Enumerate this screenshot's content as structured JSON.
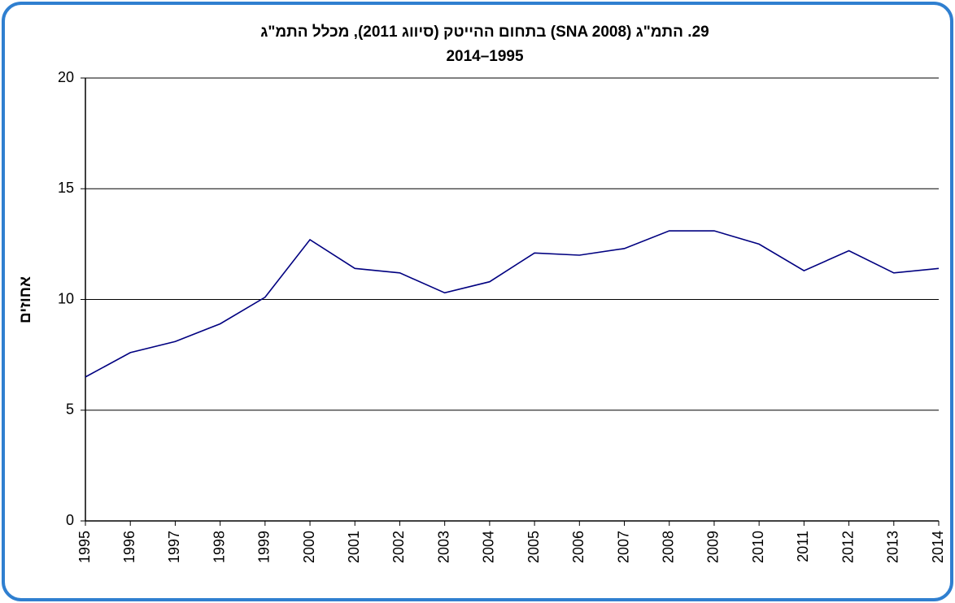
{
  "chart_data": {
    "type": "line",
    "title": "29. התמ\"ג (SNA 2008) בתחום ההייטק (סיווג 2011), מכלל התמ\"ג",
    "subtitle": "2014–1995",
    "y_label": "אחוזים",
    "categories": [
      "1995",
      "1996",
      "1997",
      "1998",
      "1999",
      "2000",
      "2001",
      "2002",
      "2003",
      "2004",
      "2005",
      "2006",
      "2007",
      "2008",
      "2009",
      "2010",
      "2011",
      "2012",
      "2013",
      "2014"
    ],
    "series": [
      {
        "name": "התמ\"ג בתחום ההייטק",
        "color": "#000080",
        "values": [
          6.5,
          7.6,
          8.1,
          8.9,
          10.1,
          12.7,
          11.4,
          11.2,
          10.3,
          10.8,
          12.1,
          12.0,
          12.3,
          13.1,
          13.1,
          12.5,
          11.3,
          12.2,
          11.2,
          11.4
        ]
      }
    ],
    "ylim": [
      0,
      20
    ],
    "yticks": [
      0,
      5,
      10,
      15,
      20
    ],
    "grid": true
  }
}
